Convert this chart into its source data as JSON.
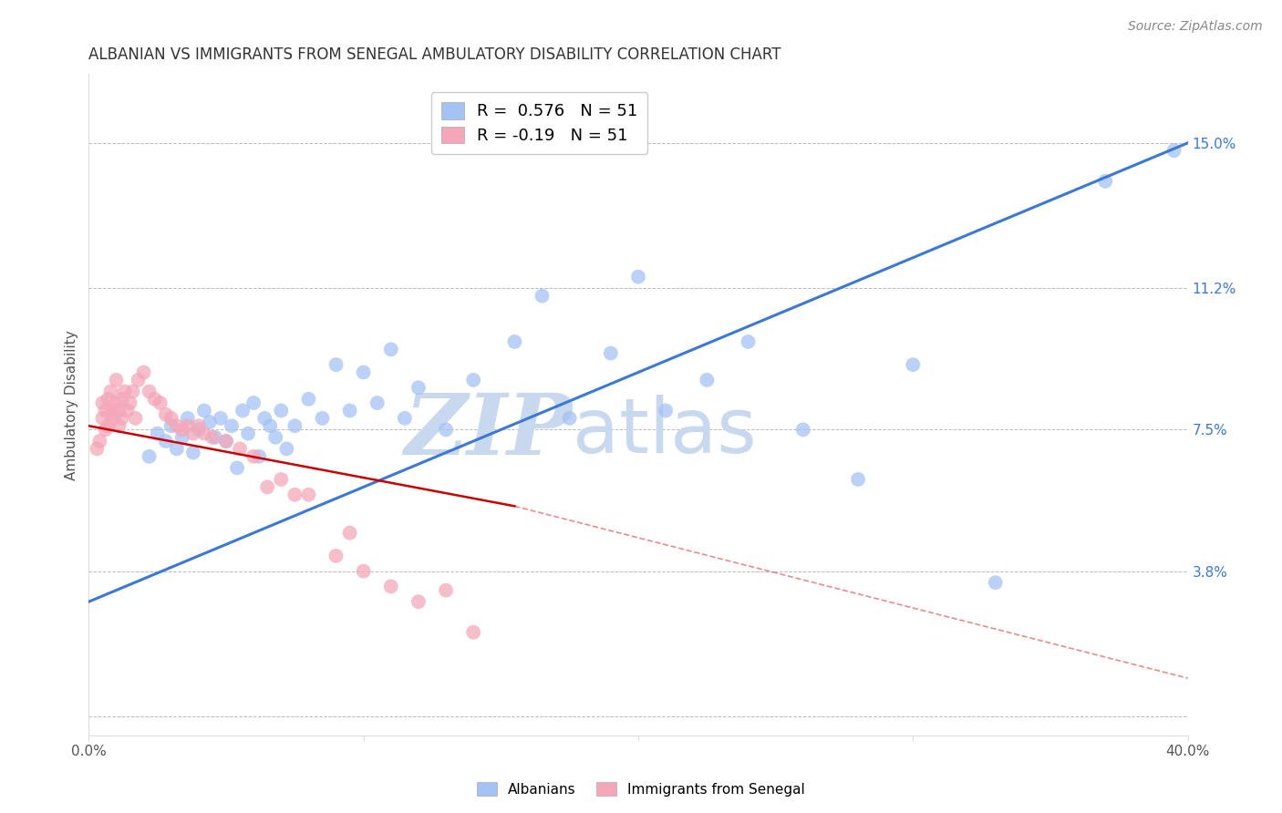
{
  "title": "ALBANIAN VS IMMIGRANTS FROM SENEGAL AMBULATORY DISABILITY CORRELATION CHART",
  "source": "Source: ZipAtlas.com",
  "ylabel": "Ambulatory Disability",
  "xlim": [
    0.0,
    0.4
  ],
  "ylim": [
    -0.005,
    0.168
  ],
  "yticks": [
    0.0,
    0.038,
    0.075,
    0.112,
    0.15
  ],
  "ytick_labels": [
    "",
    "3.8%",
    "7.5%",
    "11.2%",
    "15.0%"
  ],
  "xticks": [
    0.0,
    0.1,
    0.2,
    0.3,
    0.4
  ],
  "xtick_labels": [
    "0.0%",
    "",
    "",
    "",
    "40.0%"
  ],
  "blue_R": 0.576,
  "blue_N": 51,
  "pink_R": -0.19,
  "pink_N": 51,
  "blue_color": "#a4c2f4",
  "pink_color": "#f4a7b9",
  "blue_line_color": "#3c78d8",
  "pink_line_color": "#cc0000",
  "watermark_zip": "ZIP",
  "watermark_atlas": "atlas",
  "watermark_color_zip": "#c8d8ee",
  "watermark_color_atlas": "#c8d8ee",
  "background_color": "#ffffff",
  "blue_x": [
    0.022,
    0.025,
    0.028,
    0.03,
    0.032,
    0.034,
    0.036,
    0.038,
    0.04,
    0.042,
    0.044,
    0.046,
    0.048,
    0.05,
    0.052,
    0.054,
    0.056,
    0.058,
    0.06,
    0.062,
    0.064,
    0.066,
    0.068,
    0.07,
    0.072,
    0.075,
    0.08,
    0.085,
    0.09,
    0.095,
    0.1,
    0.105,
    0.11,
    0.115,
    0.12,
    0.13,
    0.14,
    0.155,
    0.165,
    0.175,
    0.19,
    0.2,
    0.21,
    0.225,
    0.24,
    0.26,
    0.28,
    0.3,
    0.33,
    0.37,
    0.395
  ],
  "blue_y": [
    0.068,
    0.074,
    0.072,
    0.076,
    0.07,
    0.073,
    0.078,
    0.069,
    0.075,
    0.08,
    0.077,
    0.073,
    0.078,
    0.072,
    0.076,
    0.065,
    0.08,
    0.074,
    0.082,
    0.068,
    0.078,
    0.076,
    0.073,
    0.08,
    0.07,
    0.076,
    0.083,
    0.078,
    0.092,
    0.08,
    0.09,
    0.082,
    0.096,
    0.078,
    0.086,
    0.075,
    0.088,
    0.098,
    0.11,
    0.078,
    0.095,
    0.115,
    0.08,
    0.088,
    0.098,
    0.075,
    0.062,
    0.092,
    0.035,
    0.14,
    0.148
  ],
  "pink_x": [
    0.003,
    0.004,
    0.005,
    0.005,
    0.006,
    0.006,
    0.007,
    0.007,
    0.008,
    0.008,
    0.009,
    0.009,
    0.01,
    0.01,
    0.011,
    0.011,
    0.012,
    0.012,
    0.013,
    0.014,
    0.015,
    0.016,
    0.017,
    0.018,
    0.02,
    0.022,
    0.024,
    0.026,
    0.028,
    0.03,
    0.032,
    0.034,
    0.036,
    0.038,
    0.04,
    0.042,
    0.045,
    0.05,
    0.055,
    0.06,
    0.065,
    0.07,
    0.075,
    0.08,
    0.09,
    0.095,
    0.1,
    0.11,
    0.12,
    0.13,
    0.14
  ],
  "pink_y": [
    0.07,
    0.072,
    0.078,
    0.082,
    0.075,
    0.08,
    0.076,
    0.083,
    0.079,
    0.085,
    0.08,
    0.078,
    0.082,
    0.088,
    0.076,
    0.08,
    0.083,
    0.078,
    0.085,
    0.08,
    0.082,
    0.085,
    0.078,
    0.088,
    0.09,
    0.085,
    0.083,
    0.082,
    0.079,
    0.078,
    0.076,
    0.075,
    0.076,
    0.074,
    0.076,
    0.074,
    0.073,
    0.072,
    0.07,
    0.068,
    0.06,
    0.062,
    0.058,
    0.058,
    0.042,
    0.048,
    0.038,
    0.034,
    0.03,
    0.033,
    0.022
  ],
  "blue_line_x0": 0.0,
  "blue_line_y0": 0.03,
  "blue_line_x1": 0.4,
  "blue_line_y1": 0.15,
  "pink_line_x0": 0.0,
  "pink_line_y0": 0.076,
  "pink_line_x1_solid": 0.155,
  "pink_line_y1_solid": 0.055,
  "pink_line_x1_dash": 0.4,
  "pink_line_y1_dash": 0.01
}
